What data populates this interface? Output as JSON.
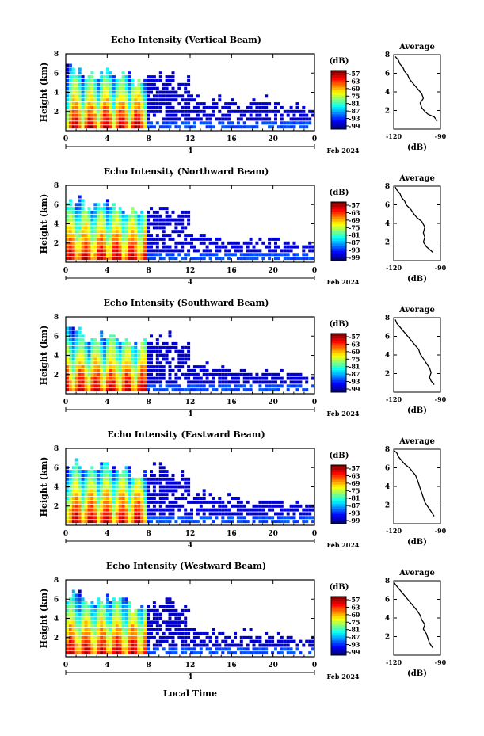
{
  "figure": {
    "xlabel": "Local Time",
    "date_label": "4",
    "month_label": "Feb 2024",
    "colorbar_unit": "(dB)",
    "avg_title": "Average",
    "avg_xlabel": "(dB)"
  },
  "chart_data": [
    {
      "type": "heatmap",
      "title": "Echo Intensity (Vertical Beam)",
      "ylabel": "Height (km)",
      "xlim": [
        0,
        24
      ],
      "ylim": [
        0,
        8
      ],
      "xticks": [
        "0",
        "4",
        "8",
        "12",
        "16",
        "20",
        "0"
      ],
      "yticks": [
        "2",
        "4",
        "6",
        "8"
      ],
      "colorbar_ticks": [
        "-57",
        "-63",
        "-69",
        "-75",
        "-81",
        "-87",
        "-93",
        "-99"
      ],
      "colorbar_range": [
        -99,
        -57
      ],
      "average_profile": {
        "title": "Average",
        "xlabel": "(dB)",
        "xlim": [
          -120,
          -90
        ],
        "xticks": [
          "-120",
          "-90"
        ],
        "ylim": [
          0,
          8
        ],
        "yticks": [
          "2",
          "4",
          "6",
          "8"
        ],
        "points": [
          [
            -92,
            0.9
          ],
          [
            -94,
            1.3
          ],
          [
            -98,
            1.6
          ],
          [
            -100,
            1.9
          ],
          [
            -102,
            2.3
          ],
          [
            -103,
            2.8
          ],
          [
            -101,
            3.3
          ],
          [
            -102,
            3.8
          ],
          [
            -104,
            4.2
          ],
          [
            -106,
            4.6
          ],
          [
            -108,
            5.0
          ],
          [
            -110,
            5.4
          ],
          [
            -111,
            5.8
          ],
          [
            -113,
            6.2
          ],
          [
            -114,
            6.6
          ],
          [
            -116,
            7.0
          ],
          [
            -117,
            7.4
          ],
          [
            -119,
            7.8
          ]
        ]
      },
      "echo_top_km": [
        6.5,
        5.8,
        6.2,
        5.6,
        5.2,
        5.4,
        5.9,
        5.3,
        3.4,
        3.2,
        3.0,
        2.9,
        2.8,
        3.0,
        2.6,
        2.3
      ]
    },
    {
      "type": "heatmap",
      "title": "Echo Intensity (Northward Beam)",
      "ylabel": "Height (km)",
      "xlim": [
        0,
        24
      ],
      "ylim": [
        0,
        8
      ],
      "xticks": [
        "0",
        "4",
        "8",
        "12",
        "16",
        "20",
        "0"
      ],
      "yticks": [
        "2",
        "4",
        "6",
        "8"
      ],
      "colorbar_ticks": [
        "-57",
        "-63",
        "-69",
        "-75",
        "-81",
        "-87",
        "-93",
        "-99"
      ],
      "colorbar_range": [
        -99,
        -57
      ],
      "average_profile": {
        "title": "Average",
        "xlabel": "(dB)",
        "xlim": [
          -120,
          -90
        ],
        "xticks": [
          "-120",
          "-90"
        ],
        "ylim": [
          0,
          8
        ],
        "yticks": [
          "2",
          "4",
          "6",
          "8"
        ],
        "points": [
          [
            -95,
            0.9
          ],
          [
            -97,
            1.2
          ],
          [
            -99,
            1.5
          ],
          [
            -101,
            2.0
          ],
          [
            -100,
            2.5
          ],
          [
            -101,
            3.0
          ],
          [
            -100,
            3.6
          ],
          [
            -102,
            4.2
          ],
          [
            -105,
            4.6
          ],
          [
            -107,
            5.0
          ],
          [
            -109,
            5.5
          ],
          [
            -112,
            6.0
          ],
          [
            -113,
            6.4
          ],
          [
            -115,
            6.8
          ],
          [
            -116,
            7.2
          ],
          [
            -118,
            7.6
          ],
          [
            -119,
            7.9
          ]
        ]
      },
      "echo_top_km": [
        6.4,
        5.9,
        6.1,
        5.5,
        5.3,
        5.5,
        5.8,
        5.2,
        2.9,
        2.6,
        2.4,
        2.3,
        2.2,
        2.4,
        2.1,
        1.9
      ]
    },
    {
      "type": "heatmap",
      "title": "Echo Intensity (Southward Beam)",
      "ylabel": "Height (km)",
      "xlim": [
        0,
        24
      ],
      "ylim": [
        0,
        8
      ],
      "xticks": [
        "0",
        "4",
        "8",
        "12",
        "16",
        "20",
        "0"
      ],
      "yticks": [
        "2",
        "4",
        "6",
        "8"
      ],
      "colorbar_ticks": [
        "-57",
        "-63",
        "-69",
        "-75",
        "-81",
        "-87",
        "-93",
        "-99"
      ],
      "colorbar_range": [
        -99,
        -57
      ],
      "average_profile": {
        "title": "Average",
        "xlabel": "(dB)",
        "xlim": [
          -120,
          -90
        ],
        "xticks": [
          "-120",
          "-90"
        ],
        "ylim": [
          0,
          8
        ],
        "yticks": [
          "2",
          "4",
          "6",
          "8"
        ],
        "points": [
          [
            -94,
            0.8
          ],
          [
            -96,
            1.2
          ],
          [
            -97,
            1.6
          ],
          [
            -96,
            2.1
          ],
          [
            -97,
            2.6
          ],
          [
            -99,
            3.1
          ],
          [
            -101,
            3.6
          ],
          [
            -103,
            4.1
          ],
          [
            -104,
            4.6
          ],
          [
            -106,
            5.0
          ],
          [
            -108,
            5.4
          ],
          [
            -110,
            5.8
          ],
          [
            -112,
            6.2
          ],
          [
            -114,
            6.6
          ],
          [
            -116,
            7.0
          ],
          [
            -118,
            7.4
          ],
          [
            -119,
            7.8
          ]
        ]
      },
      "echo_top_km": [
        6.5,
        5.9,
        6.0,
        5.6,
        5.2,
        5.4,
        5.8,
        5.2,
        3.0,
        2.7,
        2.5,
        2.4,
        2.3,
        2.2,
        2.0,
        1.8
      ]
    },
    {
      "type": "heatmap",
      "title": "Echo Intensity (Eastward Beam)",
      "ylabel": "Height (km)",
      "xlim": [
        0,
        24
      ],
      "ylim": [
        0,
        8
      ],
      "xticks": [
        "0",
        "4",
        "8",
        "12",
        "16",
        "20",
        "0"
      ],
      "yticks": [
        "2",
        "4",
        "6",
        "8"
      ],
      "colorbar_ticks": [
        "-57",
        "-63",
        "-69",
        "-75",
        "-81",
        "-87",
        "-93",
        "-99"
      ],
      "colorbar_range": [
        -99,
        -57
      ],
      "average_profile": {
        "title": "Average",
        "xlabel": "(dB)",
        "xlim": [
          -120,
          -90
        ],
        "xticks": [
          "-120",
          "-90"
        ],
        "ylim": [
          0,
          8
        ],
        "yticks": [
          "2",
          "4",
          "6",
          "8"
        ],
        "points": [
          [
            -94,
            0.8
          ],
          [
            -96,
            1.3
          ],
          [
            -98,
            1.8
          ],
          [
            -100,
            2.3
          ],
          [
            -101,
            2.8
          ],
          [
            -102,
            3.3
          ],
          [
            -103,
            3.8
          ],
          [
            -104,
            4.3
          ],
          [
            -105,
            4.8
          ],
          [
            -106,
            5.2
          ],
          [
            -108,
            5.6
          ],
          [
            -110,
            6.0
          ],
          [
            -113,
            6.4
          ],
          [
            -115,
            6.8
          ],
          [
            -117,
            7.2
          ],
          [
            -118,
            7.6
          ],
          [
            -120,
            7.9
          ]
        ]
      },
      "echo_top_km": [
        6.3,
        5.8,
        6.2,
        5.7,
        5.3,
        5.5,
        5.9,
        5.3,
        3.2,
        2.9,
        2.8,
        2.7,
        2.6,
        2.5,
        2.3,
        2.1
      ]
    },
    {
      "type": "heatmap",
      "title": "Echo Intensity (Westward Beam)",
      "ylabel": "Height (km)",
      "xlim": [
        0,
        24
      ],
      "ylim": [
        0,
        8
      ],
      "xticks": [
        "0",
        "4",
        "8",
        "12",
        "16",
        "20",
        "0"
      ],
      "yticks": [
        "2",
        "4",
        "6",
        "8"
      ],
      "colorbar_ticks": [
        "-57",
        "-63",
        "-69",
        "-75",
        "-81",
        "-87",
        "-93",
        "-99"
      ],
      "colorbar_range": [
        -99,
        -57
      ],
      "average_profile": {
        "title": "Average",
        "xlabel": "(dB)",
        "xlim": [
          -120,
          -90
        ],
        "xticks": [
          "-120",
          "-90"
        ],
        "ylim": [
          0,
          8
        ],
        "yticks": [
          "2",
          "4",
          "6",
          "8"
        ],
        "points": [
          [
            -95,
            0.8
          ],
          [
            -97,
            1.3
          ],
          [
            -98,
            1.8
          ],
          [
            -99,
            2.3
          ],
          [
            -101,
            2.8
          ],
          [
            -100,
            3.3
          ],
          [
            -102,
            3.8
          ],
          [
            -103,
            4.3
          ],
          [
            -105,
            4.8
          ],
          [
            -107,
            5.2
          ],
          [
            -109,
            5.6
          ],
          [
            -111,
            6.0
          ],
          [
            -113,
            6.4
          ],
          [
            -115,
            6.8
          ],
          [
            -117,
            7.2
          ],
          [
            -119,
            7.6
          ],
          [
            -120,
            7.9
          ]
        ]
      },
      "echo_top_km": [
        6.4,
        5.7,
        6.1,
        5.6,
        5.2,
        5.4,
        5.8,
        5.2,
        2.9,
        2.6,
        2.4,
        2.3,
        2.2,
        2.3,
        2.0,
        1.8
      ]
    }
  ]
}
